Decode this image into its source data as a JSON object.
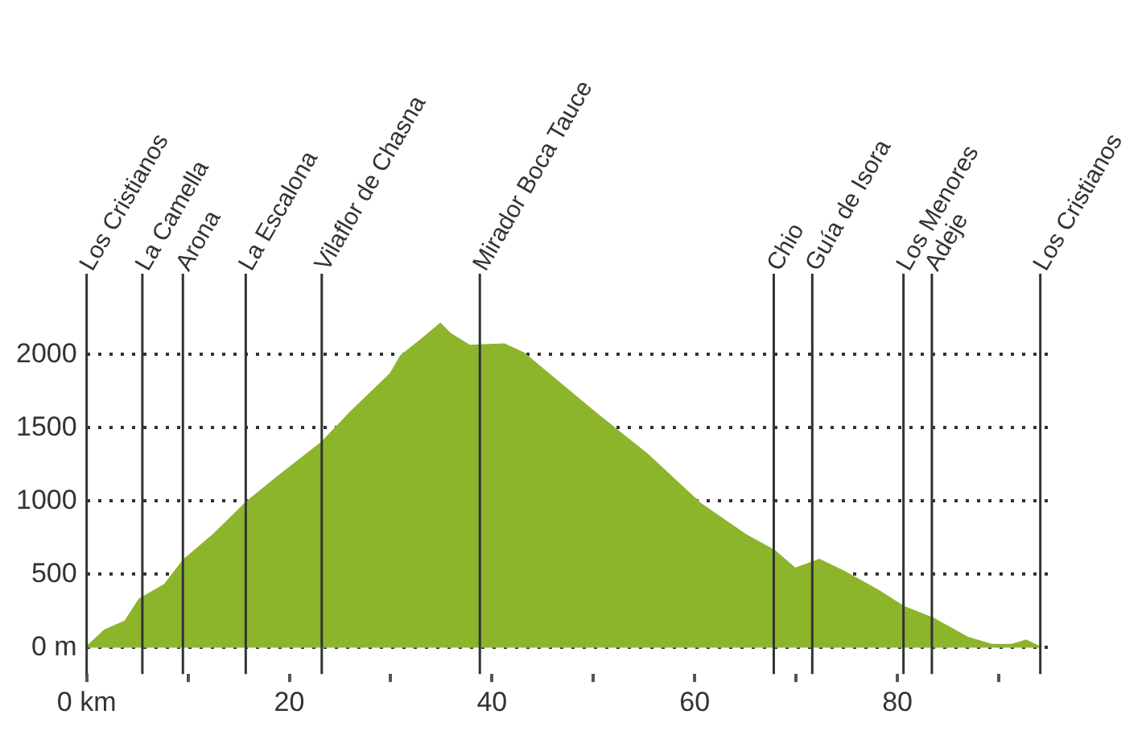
{
  "chart_data": {
    "type": "area",
    "x": [
      0,
      0.1,
      1.8,
      3.8,
      5.2,
      7.7,
      9.6,
      12.5,
      15.9,
      19.3,
      23.2,
      26.1,
      30.0,
      31.0,
      33.0,
      34.9,
      35.9,
      37.8,
      41.2,
      43.1,
      50.4,
      55.3,
      60.6,
      65.0,
      67.9,
      69.9,
      72.3,
      74.7,
      78.1,
      80.6,
      83.5,
      86.9,
      89.3,
      91.3,
      92.7,
      93.9,
      94.1
    ],
    "series": [
      {
        "color": "#8db52c",
        "values": [
          0,
          10,
          120,
          180,
          330,
          430,
          600,
          770,
          1000,
          1190,
          1400,
          1610,
          1870,
          1990,
          2100,
          2210,
          2140,
          2060,
          2070,
          2010,
          1590,
          1320,
          980,
          770,
          660,
          540,
          600,
          520,
          390,
          280,
          200,
          70,
          20,
          20,
          50,
          10,
          0
        ]
      }
    ],
    "xlim": [
      0,
      95
    ],
    "xticks": [
      {
        "value": 0,
        "label": "0 km"
      },
      {
        "value": 10,
        "label": null
      },
      20,
      {
        "value": 30,
        "label": null
      },
      40,
      {
        "value": 50,
        "label": null
      },
      60,
      {
        "value": 70,
        "label": null
      },
      80,
      {
        "value": 90,
        "label": null
      }
    ],
    "ylim": [
      -180,
      2550
    ],
    "yticks": [
      {
        "value": 0,
        "label": "0 m"
      },
      500,
      1000,
      1500,
      2000
    ],
    "grid": "y",
    "legend": false,
    "ref_lines": [
      {
        "axis": "x",
        "value": 0,
        "label": "Los Cristianos",
        "color": "#333333"
      },
      {
        "axis": "x",
        "value": 5.5,
        "label": "La Camella",
        "color": "#333333"
      },
      {
        "axis": "x",
        "value": 9.5,
        "label": "Arona",
        "color": "#333333"
      },
      {
        "axis": "x",
        "value": 15.7,
        "label": "La Escalona",
        "color": "#333333"
      },
      {
        "axis": "x",
        "value": 23.2,
        "label": "Vilaflor de Chasna",
        "color": "#333333"
      },
      {
        "axis": "x",
        "value": 38.8,
        "label": "Mirador Boca Tauce",
        "color": "#333333"
      },
      {
        "axis": "x",
        "value": 67.8,
        "label": "Chio",
        "color": "#333333"
      },
      {
        "axis": "x",
        "value": 71.6,
        "label": "Guía de Isora",
        "color": "#333333"
      },
      {
        "axis": "x",
        "value": 80.6,
        "label": "Los Menores",
        "color": "#333333"
      },
      {
        "axis": "x",
        "value": 83.4,
        "label": "Adeje",
        "color": "#333333"
      },
      {
        "axis": "x",
        "value": 94.1,
        "label": "Los Cristianos",
        "color": "#333333"
      }
    ]
  }
}
